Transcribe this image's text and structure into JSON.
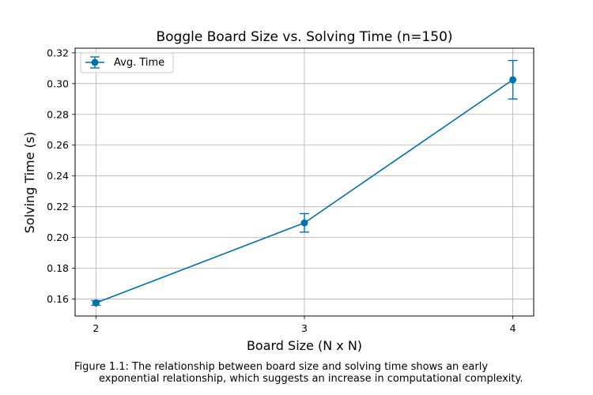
{
  "chart_data": {
    "type": "line",
    "title": "Boggle Board Size vs. Solving Time (n=150)",
    "xlabel": "Board Size (N x N)",
    "ylabel": "Solving Time (s)",
    "x": [
      2,
      3,
      4
    ],
    "xticks": [
      "2",
      "3",
      "4"
    ],
    "yticks": [
      "0.16",
      "0.18",
      "0.20",
      "0.22",
      "0.24",
      "0.26",
      "0.28",
      "0.30",
      "0.32"
    ],
    "xlim": [
      1.9,
      4.1
    ],
    "ylim": [
      0.149,
      0.323
    ],
    "grid": true,
    "legend_position": "top-left",
    "series": [
      {
        "name": "Avg. Time",
        "values": [
          0.1575,
          0.2095,
          0.3025
        ],
        "error": [
          0.0015,
          0.006,
          0.0125
        ],
        "color": "#0072b2"
      }
    ]
  },
  "caption": {
    "line1": "Figure 1.1: The relationship between board size and solving time shows an early",
    "line2": "exponential relationship, which suggests an increase in computational complexity."
  }
}
